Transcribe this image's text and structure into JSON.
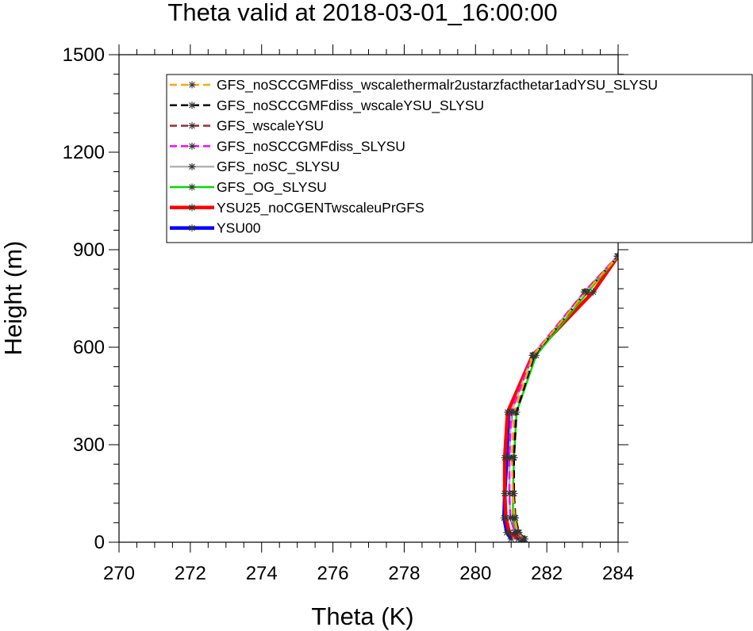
{
  "chart_data": {
    "type": "line",
    "title": "Theta valid at 2018-03-01_16:00:00",
    "xlabel": "Theta (K)",
    "ylabel": "Height (m)",
    "xlim": [
      270,
      284
    ],
    "ylim": [
      0,
      1500
    ],
    "x_ticks": [
      270,
      272,
      274,
      276,
      278,
      280,
      282,
      284
    ],
    "y_ticks": [
      0,
      300,
      600,
      900,
      1200,
      1500
    ],
    "grid": false,
    "legend_position": "top-right",
    "heights": [
      10,
      30,
      75,
      150,
      260,
      400,
      575,
      770,
      880
    ],
    "series": [
      {
        "name": "GFS_noSCCGMFdiss_wscalethermalr2ustarzfacthetar1adYSU_SLYSU",
        "color": "#ffa500",
        "dash": "10,6",
        "width": 2.5,
        "markers": true,
        "values": [
          281.35,
          281.18,
          281.1,
          281.05,
          281.02,
          281.08,
          281.62,
          283.1,
          284.0
        ]
      },
      {
        "name": "GFS_noSCCGMFdiss_wscaleYSU_SLYSU",
        "color": "#000000",
        "dash": "10,6",
        "width": 2.5,
        "markers": true,
        "values": [
          281.38,
          281.22,
          281.12,
          281.08,
          281.08,
          281.15,
          281.65,
          283.1,
          284.0
        ]
      },
      {
        "name": "GFS_wscaleYSU",
        "color": "#a52a2a",
        "dash": "10,6",
        "width": 2.5,
        "markers": true,
        "values": [
          281.38,
          281.2,
          281.1,
          281.06,
          281.06,
          281.12,
          281.64,
          283.08,
          284.0
        ]
      },
      {
        "name": "GFS_noSCCGMFdiss_SLYSU",
        "color": "#ff00ff",
        "dash": "10,6",
        "width": 2.5,
        "markers": true,
        "values": [
          281.3,
          281.1,
          280.98,
          280.95,
          280.95,
          281.0,
          281.6,
          283.05,
          283.98
        ]
      },
      {
        "name": "GFS_noSC_SLYSU",
        "color": "#b4b4b4",
        "dash": "",
        "width": 2.5,
        "markers": true,
        "values": [
          281.3,
          281.1,
          280.98,
          280.95,
          280.95,
          281.0,
          281.6,
          283.05,
          283.98
        ]
      },
      {
        "name": "GFS_OG_SLYSU",
        "color": "#00dd00",
        "dash": "",
        "width": 2.5,
        "markers": true,
        "values": [
          281.32,
          281.12,
          281.05,
          281.05,
          281.08,
          281.15,
          281.7,
          283.15,
          284.0
        ]
      },
      {
        "name": "YSU25_noCGENTwscaleuPrGFS",
        "color": "#ff0000",
        "dash": "",
        "width": 4.5,
        "markers": true,
        "values": [
          281.2,
          280.95,
          280.85,
          280.82,
          280.82,
          280.9,
          281.6,
          283.3,
          284.0
        ]
      },
      {
        "name": "YSU00",
        "color": "#0000ff",
        "dash": "",
        "width": 4.5,
        "markers": true,
        "values": [
          281.0,
          280.88,
          280.8,
          280.82,
          280.88,
          281.0,
          null,
          null,
          null
        ]
      }
    ]
  }
}
